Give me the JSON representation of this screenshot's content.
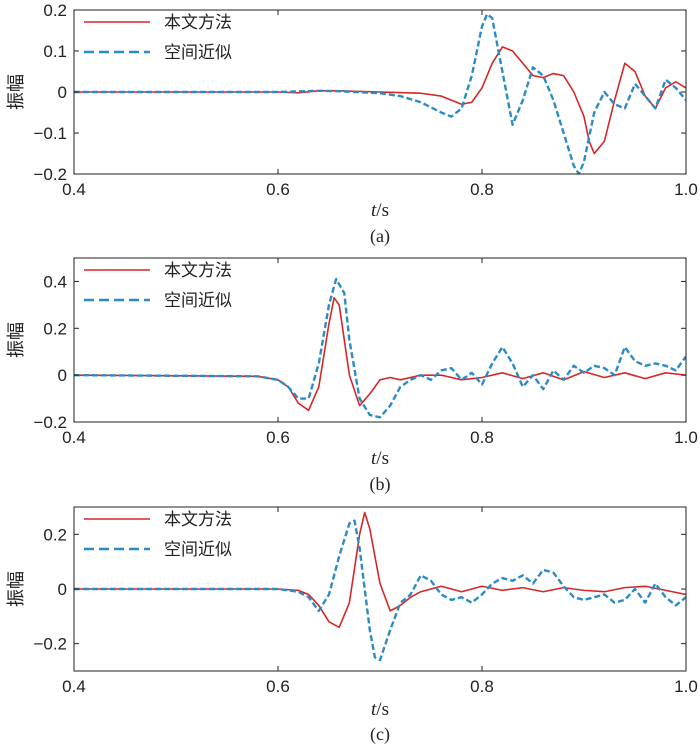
{
  "chart_data": [
    {
      "type": "line",
      "caption": "(a)",
      "xlabel_var": "t",
      "xlabel_unit": "/s",
      "ylabel": "振幅",
      "xlim": [
        0.4,
        1.0
      ],
      "ylim": [
        -0.2,
        0.2
      ],
      "xticks": [
        0.4,
        0.6,
        0.8,
        1.0
      ],
      "xtick_labels": [
        "0.4",
        "0.6",
        "0.8",
        "1.0"
      ],
      "yticks": [
        -0.2,
        -0.1,
        0,
        0.1,
        0.2
      ],
      "ytick_labels": [
        "−0.2",
        "−0.1",
        "0",
        "0.1",
        "0.2"
      ],
      "grid": false,
      "legend_position": "top-left",
      "series": [
        {
          "name": "本文方法",
          "color": "#d62728",
          "dash": "solid",
          "x": [
            0.4,
            0.55,
            0.6,
            0.62,
            0.64,
            0.66,
            0.7,
            0.74,
            0.76,
            0.78,
            0.79,
            0.8,
            0.81,
            0.82,
            0.83,
            0.84,
            0.85,
            0.86,
            0.87,
            0.88,
            0.89,
            0.9,
            0.905,
            0.91,
            0.92,
            0.93,
            0.94,
            0.95,
            0.96,
            0.97,
            0.98,
            0.99,
            1.0
          ],
          "y": [
            0,
            0,
            0,
            -0.002,
            0.003,
            0.003,
            0,
            -0.003,
            -0.01,
            -0.03,
            -0.025,
            0.01,
            0.07,
            0.11,
            0.1,
            0.07,
            0.04,
            0.035,
            0.045,
            0.04,
            0.0,
            -0.06,
            -0.12,
            -0.15,
            -0.12,
            -0.02,
            0.07,
            0.05,
            -0.01,
            -0.04,
            0.01,
            0.025,
            0.01
          ]
        },
        {
          "name": "空间近似",
          "color": "#2b8cc4",
          "dash": "dashed",
          "x": [
            0.4,
            0.55,
            0.6,
            0.64,
            0.66,
            0.7,
            0.72,
            0.74,
            0.76,
            0.77,
            0.78,
            0.79,
            0.8,
            0.805,
            0.81,
            0.82,
            0.83,
            0.84,
            0.85,
            0.86,
            0.87,
            0.88,
            0.89,
            0.895,
            0.9,
            0.91,
            0.92,
            0.93,
            0.94,
            0.95,
            0.96,
            0.97,
            0.98,
            0.99,
            1.0
          ],
          "y": [
            0,
            0,
            0,
            0.003,
            0.002,
            -0.003,
            -0.01,
            -0.025,
            -0.05,
            -0.06,
            -0.04,
            0.04,
            0.16,
            0.19,
            0.18,
            0.05,
            -0.08,
            -0.02,
            0.06,
            0.04,
            -0.02,
            -0.1,
            -0.18,
            -0.2,
            -0.17,
            -0.05,
            0.0,
            -0.03,
            -0.04,
            0.02,
            -0.01,
            -0.04,
            0.03,
            0.01,
            -0.02
          ]
        }
      ]
    },
    {
      "type": "line",
      "caption": "(b)",
      "xlabel_var": "t",
      "xlabel_unit": "/s",
      "ylabel": "振幅",
      "xlim": [
        0.4,
        1.0
      ],
      "ylim": [
        -0.2,
        0.5
      ],
      "xticks": [
        0.4,
        0.6,
        0.8,
        1.0
      ],
      "xtick_labels": [
        "0.4",
        "0.6",
        "0.8",
        "1.0"
      ],
      "yticks": [
        -0.2,
        0,
        0.2,
        0.4
      ],
      "ytick_labels": [
        "−0.2",
        "0",
        "0.2",
        "0.4"
      ],
      "grid": false,
      "legend_position": "top-left",
      "series": [
        {
          "name": "本文方法",
          "color": "#d62728",
          "dash": "solid",
          "x": [
            0.4,
            0.58,
            0.6,
            0.61,
            0.62,
            0.63,
            0.64,
            0.65,
            0.655,
            0.66,
            0.67,
            0.68,
            0.69,
            0.7,
            0.71,
            0.72,
            0.74,
            0.76,
            0.78,
            0.8,
            0.82,
            0.84,
            0.86,
            0.88,
            0.9,
            0.92,
            0.94,
            0.96,
            0.98,
            1.0
          ],
          "y": [
            0,
            -0.005,
            -0.02,
            -0.05,
            -0.12,
            -0.15,
            -0.05,
            0.22,
            0.33,
            0.3,
            0.0,
            -0.13,
            -0.08,
            -0.02,
            -0.01,
            -0.02,
            0.0,
            0.0,
            -0.02,
            -0.01,
            0.01,
            -0.015,
            0.01,
            -0.02,
            0.015,
            -0.01,
            0.01,
            -0.015,
            0.01,
            0.0
          ]
        },
        {
          "name": "空间近似",
          "color": "#2b8cc4",
          "dash": "dashed",
          "x": [
            0.4,
            0.58,
            0.6,
            0.61,
            0.62,
            0.63,
            0.64,
            0.65,
            0.657,
            0.665,
            0.67,
            0.68,
            0.69,
            0.7,
            0.71,
            0.72,
            0.73,
            0.74,
            0.75,
            0.76,
            0.77,
            0.78,
            0.79,
            0.8,
            0.81,
            0.82,
            0.83,
            0.84,
            0.85,
            0.86,
            0.87,
            0.88,
            0.89,
            0.9,
            0.91,
            0.92,
            0.93,
            0.94,
            0.95,
            0.96,
            0.97,
            0.98,
            0.99,
            1.0
          ],
          "y": [
            0,
            -0.005,
            -0.02,
            -0.05,
            -0.1,
            -0.1,
            0.05,
            0.3,
            0.41,
            0.35,
            0.15,
            -0.1,
            -0.17,
            -0.18,
            -0.13,
            -0.05,
            -0.02,
            0.0,
            -0.02,
            0.02,
            0.03,
            -0.02,
            0.01,
            -0.04,
            0.05,
            0.12,
            0.05,
            -0.05,
            0.0,
            -0.06,
            0.02,
            -0.02,
            0.04,
            0.01,
            0.04,
            0.03,
            0.0,
            0.12,
            0.06,
            0.04,
            0.05,
            0.04,
            0.02,
            0.08
          ]
        }
      ]
    },
    {
      "type": "line",
      "caption": "(c)",
      "xlabel_var": "t",
      "xlabel_unit": "/s",
      "ylabel": "振幅",
      "xlim": [
        0.4,
        1.0
      ],
      "ylim": [
        -0.3,
        0.3
      ],
      "xticks": [
        0.4,
        0.6,
        0.8,
        1.0
      ],
      "xtick_labels": [
        "0.4",
        "0.6",
        "0.8",
        "1.0"
      ],
      "yticks": [
        -0.2,
        0,
        0.2
      ],
      "ytick_labels": [
        "−0.2",
        "0",
        "0.2"
      ],
      "grid": false,
      "legend_position": "top-left",
      "series": [
        {
          "name": "本文方法",
          "color": "#d62728",
          "dash": "solid",
          "x": [
            0.4,
            0.6,
            0.62,
            0.63,
            0.64,
            0.65,
            0.66,
            0.67,
            0.68,
            0.685,
            0.69,
            0.7,
            0.71,
            0.72,
            0.73,
            0.74,
            0.76,
            0.78,
            0.8,
            0.82,
            0.84,
            0.86,
            0.88,
            0.9,
            0.92,
            0.94,
            0.96,
            0.98,
            1.0
          ],
          "y": [
            0,
            0,
            -0.005,
            -0.02,
            -0.06,
            -0.12,
            -0.14,
            -0.05,
            0.2,
            0.28,
            0.22,
            0.02,
            -0.08,
            -0.06,
            -0.03,
            -0.01,
            0.01,
            -0.01,
            0.01,
            -0.005,
            0.005,
            -0.01,
            0.005,
            -0.005,
            -0.01,
            0.005,
            0.01,
            -0.005,
            -0.02
          ]
        },
        {
          "name": "空间近似",
          "color": "#2b8cc4",
          "dash": "dashed",
          "x": [
            0.4,
            0.6,
            0.62,
            0.63,
            0.64,
            0.65,
            0.66,
            0.67,
            0.675,
            0.68,
            0.69,
            0.695,
            0.7,
            0.71,
            0.72,
            0.73,
            0.74,
            0.75,
            0.76,
            0.77,
            0.78,
            0.79,
            0.8,
            0.81,
            0.82,
            0.83,
            0.84,
            0.85,
            0.86,
            0.87,
            0.88,
            0.89,
            0.9,
            0.91,
            0.92,
            0.93,
            0.94,
            0.95,
            0.96,
            0.97,
            0.98,
            0.99,
            1.0
          ],
          "y": [
            0,
            0,
            -0.01,
            -0.03,
            -0.08,
            -0.02,
            0.12,
            0.24,
            0.25,
            0.15,
            -0.15,
            -0.25,
            -0.26,
            -0.15,
            -0.05,
            -0.02,
            0.05,
            0.03,
            -0.02,
            -0.04,
            -0.03,
            -0.05,
            -0.02,
            0.02,
            0.04,
            0.03,
            0.05,
            0.02,
            0.07,
            0.06,
            0.01,
            -0.03,
            -0.04,
            -0.03,
            -0.02,
            -0.05,
            -0.04,
            0.0,
            -0.05,
            0.02,
            -0.03,
            -0.06,
            -0.03
          ]
        }
      ]
    }
  ]
}
